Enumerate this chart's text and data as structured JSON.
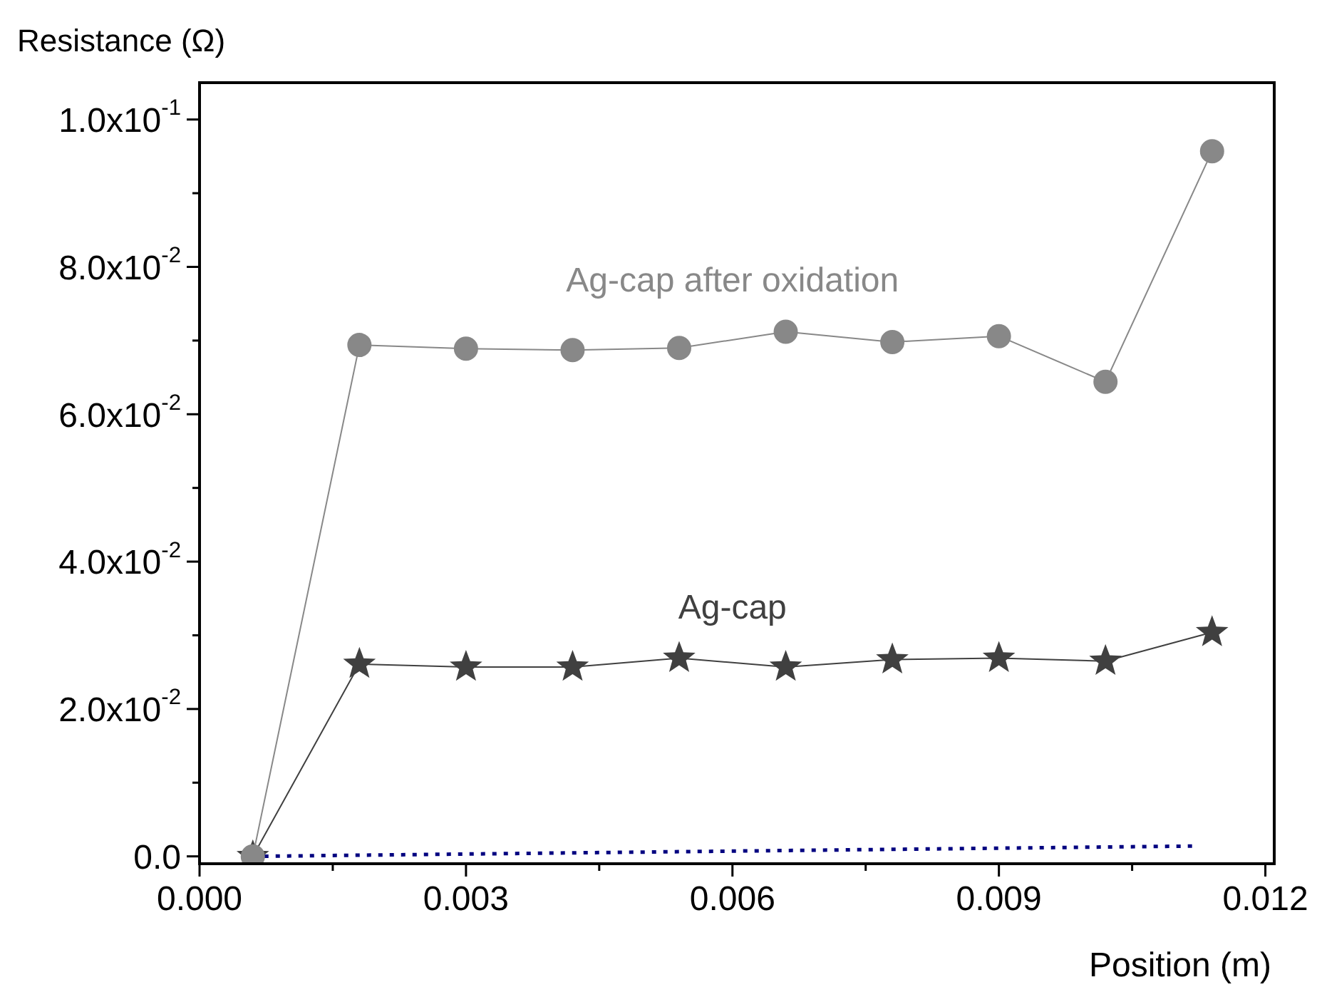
{
  "chart_data": {
    "type": "line",
    "xlabel": "Position (m)",
    "ylabel": "Resistance (Ω)",
    "x": [
      0.0006,
      0.0018,
      0.003,
      0.0042,
      0.0054,
      0.0066,
      0.0078,
      0.009,
      0.0102,
      0.0114
    ],
    "series": [
      {
        "name": "Ag-cap after oxidation",
        "color": "#888888",
        "marker": "circle",
        "values": [
          0,
          0.0694,
          0.0689,
          0.0687,
          0.069,
          0.0712,
          0.0698,
          0.0706,
          0.0644,
          0.0957
        ]
      },
      {
        "name": "Ag-cap",
        "color": "#404040",
        "marker": "star",
        "values": [
          0,
          0.0261,
          0.0257,
          0.0257,
          0.0269,
          0.0257,
          0.0267,
          0.0269,
          0.0265,
          0.0304
        ]
      },
      {
        "color": "#000080",
        "line_style": "dotted",
        "x": [
          0.0006,
          0.0112
        ],
        "values": [
          0,
          0.0014
        ]
      }
    ],
    "xlim": [
      0,
      0.0121
    ],
    "ylim": [
      -0.001,
      0.105
    ],
    "xticks": [
      {
        "value": 0,
        "label": "0.000"
      },
      {
        "value": 0.0015,
        "label": null
      },
      0.003,
      {
        "value": 0.0045,
        "label": null
      },
      0.006,
      {
        "value": 0.0075,
        "label": null
      },
      0.009,
      {
        "value": 0.0105,
        "label": null
      },
      0.012
    ],
    "yticks": [
      {
        "value": 0,
        "label": "0.0"
      },
      {
        "value": 0.01,
        "label": null
      },
      {
        "value": 0.02,
        "label": "2.0x10$^{-2}$"
      },
      {
        "value": 0.03,
        "label": null
      },
      {
        "value": 0.04,
        "label": "4.0x10$^{-2}$"
      },
      {
        "value": 0.05,
        "label": null
      },
      {
        "value": 0.06,
        "label": "6.0x10$^{-2}$"
      },
      {
        "value": 0.07,
        "label": null
      },
      {
        "value": 0.08,
        "label": "8.0x10$^{-2}$"
      },
      {
        "value": 0.09,
        "label": null
      },
      {
        "value": 0.1,
        "label": "1.0x10$^{-1}$"
      }
    ],
    "grid": false,
    "legend": false
  }
}
